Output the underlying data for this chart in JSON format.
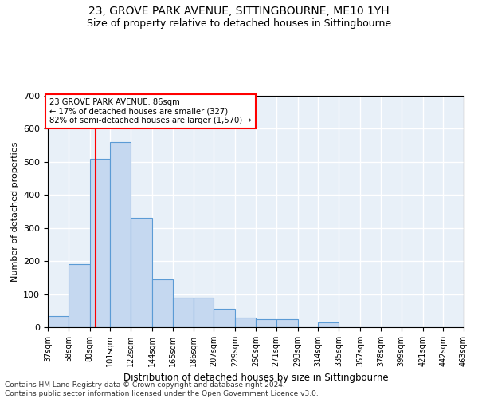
{
  "title1": "23, GROVE PARK AVENUE, SITTINGBOURNE, ME10 1YH",
  "title2": "Size of property relative to detached houses in Sittingbourne",
  "xlabel": "Distribution of detached houses by size in Sittingbourne",
  "ylabel": "Number of detached properties",
  "footnote": "Contains HM Land Registry data © Crown copyright and database right 2024.\nContains public sector information licensed under the Open Government Licence v3.0.",
  "annotation_line1": "23 GROVE PARK AVENUE: 86sqm",
  "annotation_line2": "← 17% of detached houses are smaller (327)",
  "annotation_line3": "82% of semi-detached houses are larger (1,570) →",
  "bar_color": "#c5d8f0",
  "bar_edge_color": "#5b9bd5",
  "redline_x": 86,
  "bin_edges": [
    37,
    58,
    80,
    101,
    122,
    144,
    165,
    186,
    207,
    229,
    250,
    271,
    293,
    314,
    335,
    357,
    378,
    399,
    421,
    442,
    463
  ],
  "bar_heights": [
    35,
    190,
    510,
    560,
    330,
    145,
    90,
    90,
    55,
    30,
    25,
    25,
    0,
    15,
    0,
    0,
    0,
    0,
    0,
    0
  ],
  "ylim": [
    0,
    700
  ],
  "yticks": [
    0,
    100,
    200,
    300,
    400,
    500,
    600,
    700
  ],
  "bg_color": "#e8f0f8",
  "grid_color": "#ffffff",
  "title1_fontsize": 10,
  "title2_fontsize": 9
}
